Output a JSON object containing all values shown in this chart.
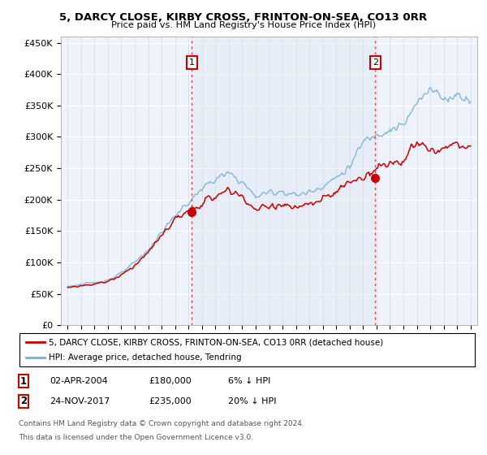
{
  "title": "5, DARCY CLOSE, KIRBY CROSS, FRINTON-ON-SEA, CO13 0RR",
  "subtitle": "Price paid vs. HM Land Registry's House Price Index (HPI)",
  "ylabel_ticks": [
    "£0",
    "£50K",
    "£100K",
    "£150K",
    "£200K",
    "£250K",
    "£300K",
    "£350K",
    "£400K",
    "£450K"
  ],
  "ytick_values": [
    0,
    50000,
    100000,
    150000,
    200000,
    250000,
    300000,
    350000,
    400000,
    450000
  ],
  "ylim": [
    0,
    460000
  ],
  "xlim_start": 1994.5,
  "xlim_end": 2025.5,
  "hpi_color": "#7BAFD4",
  "price_color": "#CC0000",
  "vline_color": "#DD4444",
  "sale1_x": 2004.25,
  "sale1_y": 180000,
  "sale2_x": 2017.9,
  "sale2_y": 235000,
  "legend_line1": "5, DARCY CLOSE, KIRBY CROSS, FRINTON-ON-SEA, CO13 0RR (detached house)",
  "legend_line2": "HPI: Average price, detached house, Tendring",
  "table_row1": [
    "1",
    "02-APR-2004",
    "£180,000",
    "6% ↓ HPI"
  ],
  "table_row2": [
    "2",
    "24-NOV-2017",
    "£235,000",
    "20% ↓ HPI"
  ],
  "footer1": "Contains HM Land Registry data © Crown copyright and database right 2024.",
  "footer2": "This data is licensed under the Open Government Licence v3.0.",
  "background_color": "#FFFFFF",
  "plot_bg_color": "#EEF2FA",
  "shade_color": "#D8E4F0"
}
